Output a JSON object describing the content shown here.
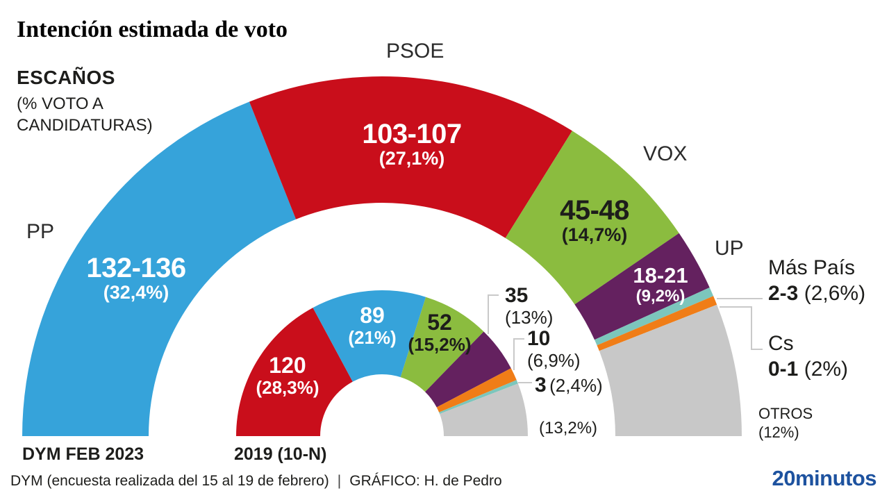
{
  "title": "Intención estimada de voto",
  "subtitle": {
    "seats_word": "ESCAÑOS",
    "note": "(% VOTO A CANDIDATURAS)"
  },
  "chart_data": {
    "type": "half-donut",
    "total_seats": 350,
    "legend_position": "around-arcs",
    "rings": [
      {
        "label": "DYM FEB 2023",
        "series": [
          {
            "party": "PP",
            "seats": "132-136",
            "seats_mid": 134,
            "pct": "(32,4%)",
            "color": "#36a3da"
          },
          {
            "party": "PSOE",
            "seats": "103-107",
            "seats_mid": 105,
            "pct": "(27,1%)",
            "color": "#c90e1b"
          },
          {
            "party": "VOX",
            "seats": "45-48",
            "seats_mid": 46.5,
            "pct": "(14,7%)",
            "color": "#8bbc3f"
          },
          {
            "party": "UP",
            "seats": "18-21",
            "seats_mid": 19.5,
            "pct": "(9,2%)",
            "color": "#64215f"
          },
          {
            "party": "Más País",
            "seats": "2-3",
            "seats_mid": 2.5,
            "pct": "(2,6%)",
            "color": "#7cc6bc"
          },
          {
            "party": "Cs",
            "seats": "0-1",
            "seats_mid": 0.5,
            "pct": "(2%)",
            "color": "#f07d17"
          },
          {
            "party": "OTROS",
            "seats": "",
            "seats_mid": 42,
            "pct": "(12%)",
            "color": "#c8c8c8"
          }
        ]
      },
      {
        "label": "2019 (10-N)",
        "series": [
          {
            "party": "PSOE",
            "seats": "120",
            "seats_mid": 120,
            "pct": "(28,3%)",
            "color": "#c90e1b"
          },
          {
            "party": "PP",
            "seats": "89",
            "seats_mid": 89,
            "pct": "(21%)",
            "color": "#36a3da"
          },
          {
            "party": "VOX",
            "seats": "52",
            "seats_mid": 52,
            "pct": "(15,2%)",
            "color": "#8bbc3f"
          },
          {
            "party": "UP",
            "seats": "35",
            "seats_mid": 35,
            "pct": "(13%)",
            "color": "#64215f"
          },
          {
            "party": "Cs",
            "seats": "10",
            "seats_mid": 10,
            "pct": "(6,9%)",
            "color": "#f07d17"
          },
          {
            "party": "Más País",
            "seats": "3",
            "seats_mid": 3,
            "pct": "(2,4%)",
            "color": "#7cc6bc"
          },
          {
            "party": "OTROS",
            "seats": "",
            "seats_mid": 41,
            "pct": "(13,2%)",
            "color": "#c8c8c8"
          }
        ]
      }
    ]
  },
  "footer": {
    "source": "DYM (encuesta realizada del 15 al 19 de febrero)",
    "separator": "|",
    "credit": "GRÁFICO: H. de Pedro",
    "logo": "20minutos",
    "logo_color": "#1d529f"
  }
}
